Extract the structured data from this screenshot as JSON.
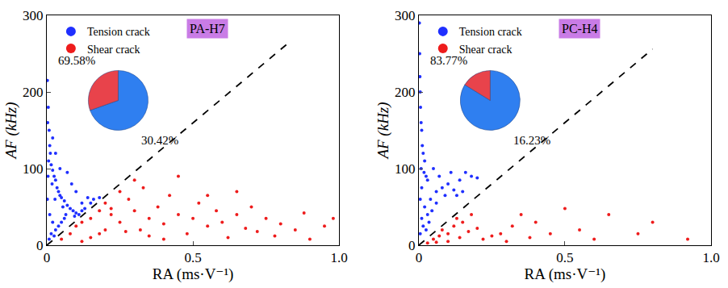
{
  "chart_data": [
    {
      "type": "scatter",
      "title": "PA-H7",
      "x_label": "RA (ms·V⁻¹)",
      "y_label": "AF (kHz)",
      "xlim": [
        0,
        1
      ],
      "xticks": [
        0,
        0.5,
        {
          "value": 1,
          "label": "1.0"
        }
      ],
      "ylim": [
        0,
        300
      ],
      "yticks": [
        0,
        100,
        200,
        300
      ],
      "legend": "upper left",
      "series": [
        {
          "name": "Tension crack",
          "color": "#1f2fff",
          "marker": "circle",
          "x": [
            0.002,
            0.005,
            0.003,
            0.008,
            0.01,
            0.012,
            0.006,
            0.015,
            0.02,
            0.025,
            0.03,
            0.018,
            0.035,
            0.04,
            0.045,
            0.05,
            0.028,
            0.06,
            0.055,
            0.07,
            0.08,
            0.065,
            0.09,
            0.1,
            0.11,
            0.12,
            0.13,
            0.15,
            0.14,
            0.1,
            0.085,
            0.07,
            0.004,
            0.002,
            0.01,
            0.02,
            0.03,
            0.04,
            0.05,
            0.015,
            0.008,
            0.025,
            0.06,
            0.095,
            0.16,
            0.12,
            0.18,
            0.045,
            0.03,
            0.02
          ],
          "values": [
            215,
            180,
            160,
            150,
            130,
            120,
            110,
            105,
            98,
            90,
            85,
            80,
            75,
            70,
            65,
            62,
            60,
            58,
            50,
            52,
            48,
            40,
            45,
            42,
            40,
            45,
            48,
            55,
            62,
            70,
            80,
            95,
            90,
            60,
            40,
            30,
            20,
            25,
            30,
            15,
            8,
            12,
            35,
            38,
            60,
            55,
            62,
            100,
            120,
            140
          ]
        },
        {
          "name": "Shear crack",
          "color": "#ee1c1c",
          "marker": "circle",
          "x": [
            0.05,
            0.08,
            0.1,
            0.12,
            0.15,
            0.18,
            0.2,
            0.22,
            0.25,
            0.28,
            0.3,
            0.32,
            0.35,
            0.38,
            0.4,
            0.42,
            0.45,
            0.48,
            0.5,
            0.52,
            0.55,
            0.58,
            0.6,
            0.62,
            0.65,
            0.68,
            0.7,
            0.72,
            0.75,
            0.78,
            0.8,
            0.85,
            0.88,
            0.9,
            0.95,
            0.98,
            0.15,
            0.2,
            0.25,
            0.3,
            0.33,
            0.45,
            0.12,
            0.18,
            0.4,
            0.55,
            0.65,
            0.35,
            0.22,
            0.27
          ],
          "values": [
            8,
            15,
            25,
            30,
            35,
            45,
            55,
            40,
            30,
            60,
            45,
            20,
            35,
            50,
            28,
            65,
            40,
            15,
            35,
            55,
            25,
            45,
            30,
            10,
            40,
            22,
            50,
            18,
            35,
            12,
            28,
            20,
            42,
            8,
            25,
            35,
            10,
            20,
            70,
            85,
            75,
            90,
            5,
            15,
            8,
            65,
            70,
            12,
            48,
            18
          ]
        },
        {
          "type": "line",
          "line_style": "dashed",
          "color": "#000000",
          "x": [
            0,
            0.83
          ],
          "values": [
            0,
            265
          ]
        }
      ],
      "pie": {
        "values": [
          69.58,
          30.42
        ],
        "value_labels": [
          "69.58%",
          "30.42%"
        ],
        "colors": [
          "#2f7ff0",
          "#e8434b"
        ]
      }
    },
    {
      "type": "scatter",
      "title": "PC-H4",
      "x_label": "RA (ms·V⁻¹)",
      "y_label": "AF (kHz)",
      "xlim": [
        0,
        1
      ],
      "xticks": [
        0,
        0.5,
        {
          "value": 1,
          "label": "1.0"
        }
      ],
      "ylim": [
        0,
        300
      ],
      "yticks": [
        0,
        100,
        200,
        300
      ],
      "legend": "upper left",
      "series": [
        {
          "name": "Tension crack",
          "color": "#1f2fff",
          "marker": "circle",
          "x": [
            0.002,
            0.003,
            0.004,
            0.005,
            0.006,
            0.008,
            0.01,
            0.012,
            0.015,
            0.02,
            0.018,
            0.025,
            0.03,
            0.01,
            0.005,
            0.02,
            0.03,
            0.035,
            0.015,
            0.005,
            0.04,
            0.06,
            0.08,
            0.1,
            0.12,
            0.14,
            0.16,
            0.18,
            0.2,
            0.07,
            0.09,
            0.11,
            0.13,
            0.15,
            0.05,
            0.06,
            0.045,
            0.025,
            0.01,
            0.008
          ],
          "values": [
            290,
            250,
            220,
            200,
            180,
            160,
            150,
            130,
            120,
            110,
            95,
            90,
            85,
            75,
            60,
            50,
            40,
            30,
            25,
            15,
            60,
            70,
            75,
            80,
            72,
            85,
            95,
            90,
            88,
            90,
            65,
            95,
            65,
            70,
            100,
            55,
            45,
            20,
            35,
            100
          ]
        },
        {
          "name": "Shear crack",
          "color": "#ee1c1c",
          "marker": "circle",
          "x": [
            0.03,
            0.05,
            0.07,
            0.08,
            0.1,
            0.12,
            0.14,
            0.15,
            0.17,
            0.2,
            0.22,
            0.25,
            0.28,
            0.3,
            0.32,
            0.35,
            0.38,
            0.4,
            0.45,
            0.5,
            0.55,
            0.6,
            0.65,
            0.75,
            0.8,
            0.92,
            0.1,
            0.18,
            0.06,
            0.13
          ],
          "values": [
            3,
            8,
            12,
            20,
            15,
            25,
            10,
            30,
            18,
            22,
            8,
            12,
            15,
            5,
            25,
            40,
            10,
            30,
            15,
            48,
            20,
            8,
            40,
            15,
            30,
            8,
            5,
            40,
            4,
            35
          ]
        },
        {
          "type": "line",
          "line_style": "dashed",
          "color": "#000000",
          "x": [
            0,
            0.8
          ],
          "values": [
            0,
            256
          ]
        }
      ],
      "pie": {
        "values": [
          83.77,
          16.23
        ],
        "value_labels": [
          "83.77%",
          "16.23%"
        ],
        "colors": [
          "#2f7ff0",
          "#e8434b"
        ]
      }
    }
  ]
}
